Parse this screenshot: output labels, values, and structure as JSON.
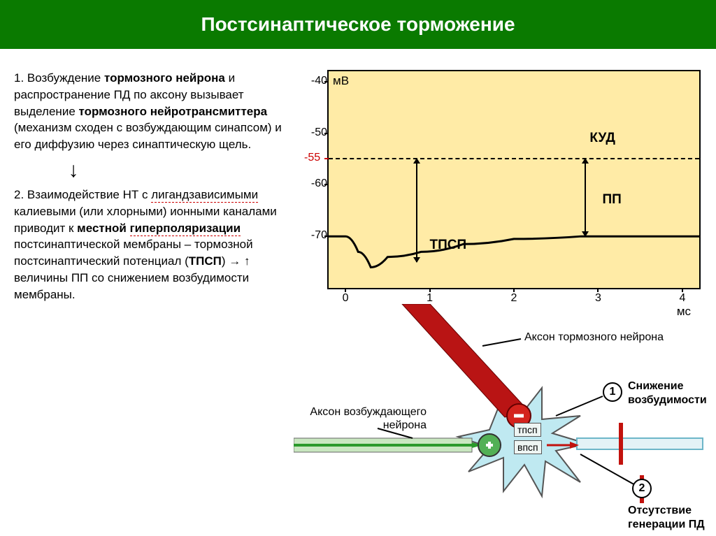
{
  "header": {
    "title": "Постсинаптическое торможение"
  },
  "text": {
    "point1_lead": "1. Возбуждение ",
    "point1_bold1": "тормозного нейрона ",
    "point1_mid1": "и распространение ПД по аксону вызывает выделение ",
    "point1_bold2": "тормозного нейротрансмиттера ",
    "point1_tail": "(механизм сходен с возбуждающим синапсом) и его диффузию через синаптическую щель.",
    "point2_lead": "2. Взаимодействие НТ с ",
    "point2_red1": "лигандзависимыми",
    "point2_mid1": " калиевыми (или хлорными) ионными каналами приводит к ",
    "point2_bold1": "местной ",
    "point2_red2": "гиперполяризации",
    "point2_mid2": " постсинаптической мембраны – тормозной постсинаптический потенциал (",
    "point2_bold2": "ТПСП",
    "point2_tail": ") → ↑ величины ПП со снижением возбудимости мембраны."
  },
  "chart": {
    "type": "line",
    "background_color": "#ffeba6",
    "border_color": "#000000",
    "y_unit": "мВ",
    "x_unit": "мс",
    "yticks": [
      -40,
      -50,
      -60,
      -70
    ],
    "ylim": [
      -80,
      -38
    ],
    "xlim": [
      -0.2,
      4.2
    ],
    "xticks": [
      0,
      1,
      2,
      3,
      4
    ],
    "red_tick": -55,
    "rest_potential": -70,
    "dip_min": -76,
    "labels": {
      "kud": "КУД",
      "pp": "ПП",
      "tpsp": "ТПСП"
    },
    "line_width": 3,
    "line_color": "#000000",
    "dash_color": "#000000"
  },
  "diagram": {
    "axon_inhib": "Аксон тормозного нейрона",
    "axon_excit_a": "Аксон возбуждающего",
    "axon_excit_b": "нейрона",
    "reduce_excit_a": "Снижение",
    "reduce_excit_b": "возбудимости",
    "no_gen_a": "Отсутствие",
    "no_gen_b": "генерации ПД",
    "tpsp_box": "тпсп",
    "vpsp_box": "впсп",
    "num1": "1",
    "num2": "2",
    "colors": {
      "inhib": "#b91414",
      "excit": "#2b9a2b",
      "cell": "#bfe9f1",
      "axon_line": "#6db6c8",
      "stop_bar": "#c2120d"
    }
  }
}
